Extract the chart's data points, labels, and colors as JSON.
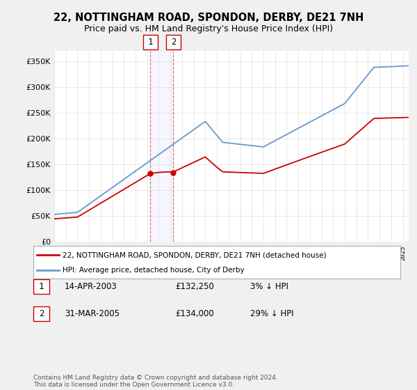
{
  "title": "22, NOTTINGHAM ROAD, SPONDON, DERBY, DE21 7NH",
  "subtitle": "Price paid vs. HM Land Registry's House Price Index (HPI)",
  "ylim": [
    0,
    370000
  ],
  "yticks": [
    0,
    50000,
    100000,
    150000,
    200000,
    250000,
    300000,
    350000
  ],
  "ytick_labels": [
    "£0",
    "£50K",
    "£100K",
    "£150K",
    "£200K",
    "£250K",
    "£300K",
    "£350K"
  ],
  "hpi_color": "#6699cc",
  "price_color": "#cc0000",
  "marker_color": "#cc0000",
  "transaction1_date": 2003.28,
  "transaction1_price": 132250,
  "transaction2_date": 2005.25,
  "transaction2_price": 134000,
  "legend_line1": "22, NOTTINGHAM ROAD, SPONDON, DERBY, DE21 7NH (detached house)",
  "legend_line2": "HPI: Average price, detached house, City of Derby",
  "table_row1": [
    "1",
    "14-APR-2003",
    "£132,250",
    "3% ↓ HPI"
  ],
  "table_row2": [
    "2",
    "31-MAR-2005",
    "£134,000",
    "29% ↓ HPI"
  ],
  "footer": "Contains HM Land Registry data © Crown copyright and database right 2024.\nThis data is licensed under the Open Government Licence v3.0.",
  "bg_color": "#f0f0f0",
  "plot_bg_color": "#ffffff",
  "grid_color": "#dddddd",
  "xmin": 1995,
  "xmax": 2025.5
}
